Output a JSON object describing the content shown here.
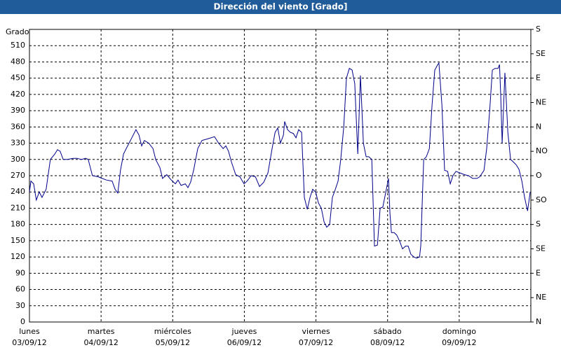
{
  "chart_data": {
    "type": "line",
    "title": "Dirección del viento [Grado]",
    "y_label": "Grado",
    "x": [
      0,
      0.5,
      1.4,
      2.3,
      3.3,
      4.2,
      5.6,
      7,
      8.5,
      9.4,
      10.3,
      11.3,
      12.7,
      14.6,
      16,
      17.4,
      18.8,
      19.7,
      21.1,
      23,
      24.4,
      25.8,
      27.7,
      28.7,
      29.6,
      30.5,
      31.5,
      32.9,
      34.3,
      35.7,
      36.7,
      37.6,
      38.5,
      40,
      41.4,
      42.3,
      43.7,
      44.6,
      46,
      47.5,
      48.9,
      49.8,
      50.8,
      52.2,
      53.1,
      54,
      55,
      56.4,
      57.8,
      59.7,
      62,
      63.4,
      64.9,
      65.8,
      66.7,
      67.7,
      69.1,
      70.5,
      71.9,
      72.9,
      74.3,
      75.7,
      77.1,
      78.5,
      79.9,
      81.3,
      82.3,
      83.2,
      84.1,
      85.1,
      85.5,
      86.5,
      87.4,
      88.4,
      89.3,
      90.2,
      91.2,
      92.1,
      93.1,
      94,
      94.9,
      95.9,
      96.8,
      97.8,
      98.7,
      99.6,
      100.6,
      101.5,
      102.5,
      103.4,
      104.3,
      105.3,
      106.2,
      107.2,
      108.1,
      109,
      110,
      110.9,
      111.9,
      112.8,
      113.7,
      114.7,
      115.6,
      116.6,
      117.5,
      118.4,
      119.4,
      120.3,
      120.8,
      121.3,
      122.2,
      123.1,
      124.1,
      125,
      126,
      126.9,
      127.8,
      128.8,
      129.7,
      130.7,
      131.1,
      132.1,
      133,
      134,
      134.9,
      135.8,
      136.8,
      137.2,
      138.2,
      139.1,
      140.1,
      141,
      141.9,
      142.9,
      144.3,
      145.7,
      147.1,
      148.5,
      149.9,
      150.9,
      152.3,
      153.2,
      154.2,
      155.1,
      156,
      157,
      157.5,
      157.9,
      158.4,
      159.3,
      160.3,
      161.2,
      162.2,
      163.1,
      164,
      165,
      165.9,
      166.9,
      167.8
    ],
    "series": [
      {
        "name": "Dirección del viento",
        "color": "#00008b",
        "values": [
          240,
          260,
          255,
          225,
          240,
          230,
          245,
          300,
          310,
          318,
          315,
          300,
          300,
          302,
          302,
          300,
          302,
          300,
          270,
          268,
          265,
          262,
          260,
          245,
          238,
          280,
          310,
          325,
          340,
          355,
          345,
          325,
          335,
          330,
          320,
          300,
          285,
          265,
          272,
          262,
          255,
          262,
          252,
          255,
          248,
          258,
          280,
          320,
          335,
          338,
          342,
          330,
          320,
          325,
          315,
          295,
          272,
          268,
          255,
          260,
          270,
          268,
          250,
          258,
          275,
          320,
          350,
          358,
          330,
          345,
          370,
          355,
          350,
          348,
          340,
          355,
          350,
          230,
          208,
          230,
          245,
          240,
          220,
          210,
          185,
          175,
          180,
          230,
          245,
          260,
          300,
          360,
          450,
          468,
          465,
          440,
          310,
          455,
          330,
          305,
          305,
          300,
          140,
          142,
          210,
          212,
          240,
          265,
          200,
          165,
          165,
          160,
          148,
          135,
          140,
          140,
          125,
          120,
          118,
          120,
          140,
          300,
          305,
          320,
          400,
          465,
          475,
          478,
          400,
          280,
          278,
          255,
          270,
          278,
          275,
          272,
          270,
          265,
          265,
          268,
          280,
          320,
          390,
          465,
          468,
          468,
          475,
          420,
          330,
          460,
          350,
          300,
          295,
          290,
          282,
          260,
          230,
          205,
          240
        ]
      }
    ],
    "xlim": [
      0,
      168
    ],
    "xticks": [
      {
        "value": 0,
        "label": "lunes"
      },
      {
        "value": 24,
        "label": "martes"
      },
      {
        "value": 48,
        "label": "miércoles"
      },
      {
        "value": 72,
        "label": "jueves"
      },
      {
        "value": 96,
        "label": "viernes"
      },
      {
        "value": 120,
        "label": "sábado"
      },
      {
        "value": 144,
        "label": "domingo"
      }
    ],
    "xtick_dates": [
      "03/09/12",
      "04/09/12",
      "05/09/12",
      "06/09/12",
      "07/09/12",
      "08/09/12",
      "09/09/12"
    ],
    "ylim": [
      0,
      540
    ],
    "yticks": [
      0,
      30,
      60,
      90,
      120,
      150,
      180,
      210,
      240,
      270,
      300,
      330,
      360,
      390,
      420,
      450,
      480,
      510
    ],
    "y2lim": [
      0,
      540
    ],
    "y2ticks": [
      {
        "value": 0,
        "label": "N"
      },
      {
        "value": 45,
        "label": "NE"
      },
      {
        "value": 90,
        "label": "E"
      },
      {
        "value": 135,
        "label": "SE"
      },
      {
        "value": 180,
        "label": "S"
      },
      {
        "value": 225,
        "label": "SO"
      },
      {
        "value": 270,
        "label": "O"
      },
      {
        "value": 315,
        "label": "NO"
      },
      {
        "value": 360,
        "label": "N"
      },
      {
        "value": 405,
        "label": "NE"
      },
      {
        "value": 450,
        "label": "E"
      },
      {
        "value": 495,
        "label": "SE"
      },
      {
        "value": 540,
        "label": "S"
      }
    ],
    "grid": true
  }
}
